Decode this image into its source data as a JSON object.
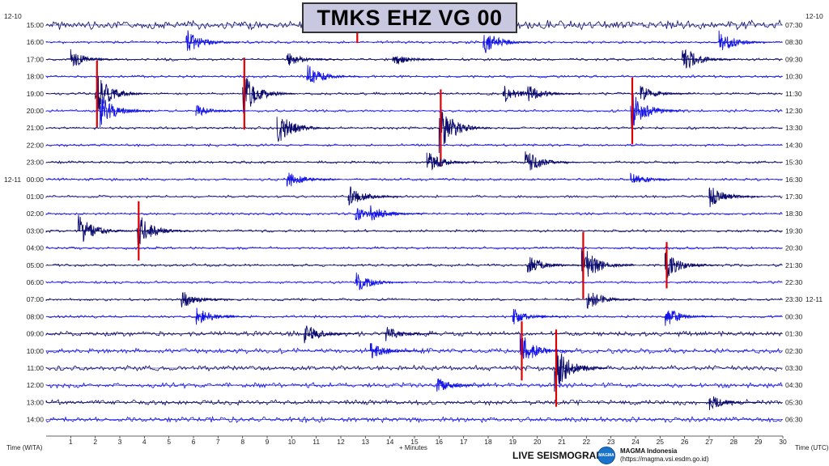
{
  "title": "TMKS EHZ VG 00",
  "left_labels": [
    "15:00",
    "16:00",
    "17:00",
    "18:00",
    "19:00",
    "20:00",
    "21:00",
    "22:00",
    "23:00",
    "00:00",
    "01:00",
    "02:00",
    "03:00",
    "04:00",
    "05:00",
    "06:00",
    "07:00",
    "08:00",
    "09:00",
    "10:00",
    "11:00",
    "12:00",
    "13:00",
    "14:00"
  ],
  "left_date_start": "12-10",
  "left_date_change": "12-11",
  "right_labels": [
    "07:30",
    "08:30",
    "09:30",
    "10:30",
    "11:30",
    "12:30",
    "13:30",
    "14:30",
    "15:30",
    "16:30",
    "17:30",
    "18:30",
    "19:30",
    "20:30",
    "21:30",
    "22:30",
    "23:30",
    "00:30",
    "01:30",
    "02:30",
    "03:30",
    "04:30",
    "05:30",
    "06:30"
  ],
  "right_date_start": "12-10",
  "right_date_change": "12-11",
  "footer": {
    "time_left": "Time (WITA)",
    "time_right": "Time (UTC)",
    "minutes_label": "+ Minutes",
    "brand": "LIVE SEISMOGRAM",
    "org_name": "MAGMA Indonesia",
    "org_url": "(https://magma.vsi.esdm.go.id)"
  },
  "colors": {
    "trace_dark": "#0a0a6e",
    "trace_blue": "#1414e6",
    "clip": "#e00000",
    "title_bg": "#c8c8e0"
  },
  "chart_data": {
    "type": "helicorder",
    "station": "TMKS EHZ VG 00",
    "x_ticks": [
      1,
      2,
      3,
      4,
      5,
      6,
      7,
      8,
      9,
      10,
      11,
      12,
      13,
      14,
      15,
      16,
      17,
      18,
      19,
      20,
      21,
      22,
      23,
      24,
      25,
      26,
      27,
      28,
      29,
      30
    ],
    "x_unit": "minutes",
    "xlim": [
      0,
      30
    ],
    "rows": 24,
    "minutes_per_row": 60,
    "events": [
      {
        "row": 0,
        "minute": 12.6,
        "amp": 1.4,
        "clip": true
      },
      {
        "row": 1,
        "minute": 5.7,
        "amp": 1.6,
        "clip": false
      },
      {
        "row": 1,
        "minute": 17.8,
        "amp": 1.6,
        "clip": false
      },
      {
        "row": 1,
        "minute": 27.4,
        "amp": 1.5,
        "clip": false
      },
      {
        "row": 2,
        "minute": 1.0,
        "amp": 1.2,
        "clip": false
      },
      {
        "row": 2,
        "minute": 9.8,
        "amp": 0.9,
        "clip": false
      },
      {
        "row": 2,
        "minute": 14.1,
        "amp": 0.9,
        "clip": false
      },
      {
        "row": 2,
        "minute": 25.9,
        "amp": 1.8,
        "clip": false
      },
      {
        "row": 3,
        "minute": 10.6,
        "amp": 1.6,
        "clip": false
      },
      {
        "row": 4,
        "minute": 2.0,
        "amp": 2.6,
        "clip": true
      },
      {
        "row": 4,
        "minute": 8.0,
        "amp": 2.8,
        "clip": true
      },
      {
        "row": 4,
        "minute": 18.6,
        "amp": 1.1,
        "clip": false
      },
      {
        "row": 4,
        "minute": 19.6,
        "amp": 1.2,
        "clip": false
      },
      {
        "row": 4,
        "minute": 24.2,
        "amp": 1.0,
        "clip": false
      },
      {
        "row": 5,
        "minute": 2.2,
        "amp": 2.0,
        "clip": false
      },
      {
        "row": 5,
        "minute": 6.1,
        "amp": 0.8,
        "clip": false
      },
      {
        "row": 5,
        "minute": 23.8,
        "amp": 2.6,
        "clip": true
      },
      {
        "row": 6,
        "minute": 9.4,
        "amp": 2.2,
        "clip": false
      },
      {
        "row": 6,
        "minute": 16.0,
        "amp": 3.0,
        "clip": true
      },
      {
        "row": 8,
        "minute": 19.5,
        "amp": 1.6,
        "clip": false
      },
      {
        "row": 8,
        "minute": 15.5,
        "amp": 1.4,
        "clip": false
      },
      {
        "row": 9,
        "minute": 9.8,
        "amp": 1.1,
        "clip": false
      },
      {
        "row": 9,
        "minute": 23.8,
        "amp": 0.9,
        "clip": false
      },
      {
        "row": 10,
        "minute": 12.3,
        "amp": 1.4,
        "clip": false
      },
      {
        "row": 10,
        "minute": 27.0,
        "amp": 1.5,
        "clip": false
      },
      {
        "row": 11,
        "minute": 13.2,
        "amp": 1.1,
        "clip": false
      },
      {
        "row": 11,
        "minute": 12.6,
        "amp": 0.9,
        "clip": false
      },
      {
        "row": 12,
        "minute": 1.3,
        "amp": 2.2,
        "clip": false
      },
      {
        "row": 12,
        "minute": 3.7,
        "amp": 2.3,
        "clip": true
      },
      {
        "row": 14,
        "minute": 19.6,
        "amp": 1.3,
        "clip": false
      },
      {
        "row": 14,
        "minute": 21.8,
        "amp": 2.6,
        "clip": true
      },
      {
        "row": 14,
        "minute": 25.2,
        "amp": 1.8,
        "clip": true
      },
      {
        "row": 15,
        "minute": 12.6,
        "amp": 1.3,
        "clip": false
      },
      {
        "row": 16,
        "minute": 5.5,
        "amp": 1.2,
        "clip": false
      },
      {
        "row": 16,
        "minute": 22.0,
        "amp": 1.4,
        "clip": false
      },
      {
        "row": 17,
        "minute": 6.1,
        "amp": 1.3,
        "clip": false
      },
      {
        "row": 17,
        "minute": 19.0,
        "amp": 1.0,
        "clip": false
      },
      {
        "row": 17,
        "minute": 25.2,
        "amp": 1.3,
        "clip": false
      },
      {
        "row": 18,
        "minute": 10.5,
        "amp": 1.4,
        "clip": false
      },
      {
        "row": 18,
        "minute": 13.8,
        "amp": 1.0,
        "clip": false
      },
      {
        "row": 19,
        "minute": 13.2,
        "amp": 1.1,
        "clip": false
      },
      {
        "row": 19,
        "minute": 19.3,
        "amp": 2.3,
        "clip": true
      },
      {
        "row": 20,
        "minute": 20.7,
        "amp": 3.0,
        "clip": true
      },
      {
        "row": 21,
        "minute": 15.9,
        "amp": 1.0,
        "clip": false
      },
      {
        "row": 22,
        "minute": 27.0,
        "amp": 1.0,
        "clip": false
      }
    ]
  }
}
